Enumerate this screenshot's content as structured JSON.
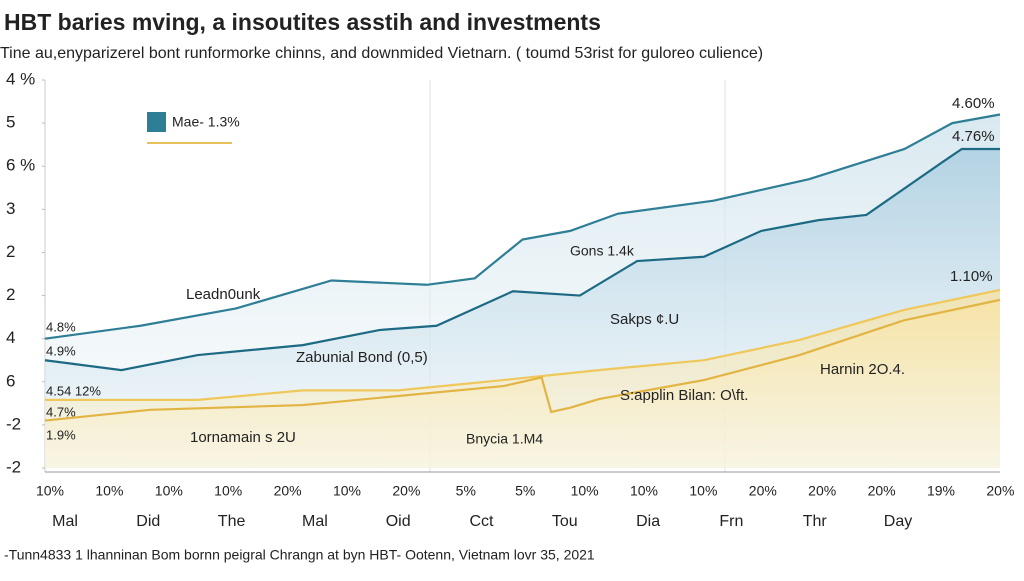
{
  "chart_data": {
    "type": "line",
    "title": "HBT baries mving, a insoutites asstih and investments",
    "subtitle": "Tine au,enyparizerel bont runformorke chinns, and downmided Vietnarn. ( toumd 53rist for guloreo culience)",
    "ylim": [
      0,
      9
    ],
    "yticks": [
      {
        "value": 9,
        "label": "4 %"
      },
      {
        "value": 8,
        "label": "5"
      },
      {
        "value": 7,
        "label": "6 %"
      },
      {
        "value": 6,
        "label": "3"
      },
      {
        "value": 5,
        "label": "2"
      },
      {
        "value": 4,
        "label": "2"
      },
      {
        "value": 3,
        "label": "4"
      },
      {
        "value": 2,
        "label": "6"
      },
      {
        "value": 1,
        "label": "-2"
      },
      {
        "value": 0,
        "label": "-2"
      }
    ],
    "xlim": [
      0,
      100
    ],
    "categories": [
      "Mal",
      "Did",
      "The",
      "Mal",
      "Oid",
      "Cct",
      "Tou",
      "Dia",
      "Frn",
      "Thr",
      "Day"
    ],
    "rate_labels": [
      "10%",
      "10%",
      "10%",
      "10%",
      "20%",
      "10%",
      "20%",
      "5%",
      "5%",
      "10%",
      "10%",
      "10%",
      "20%",
      "20%",
      "20%",
      "19%",
      "20%"
    ],
    "series": [
      {
        "name": "Mae- 1.3%",
        "color": "#2e7f96",
        "x": [
          0,
          10,
          20,
          30,
          40,
          45,
          50,
          55,
          60,
          70,
          80,
          90,
          95,
          100
        ],
        "values": [
          3.0,
          3.3,
          3.7,
          4.35,
          4.25,
          4.4,
          5.3,
          5.5,
          5.9,
          6.2,
          6.7,
          7.4,
          8.0,
          8.2
        ]
      },
      {
        "color": "#1d6a84",
        "x": [
          0,
          8,
          16,
          27,
          35,
          41,
          49,
          56,
          62,
          69,
          75,
          81,
          86,
          94,
          96,
          100
        ],
        "values": [
          2.5,
          2.27,
          2.62,
          2.85,
          3.2,
          3.3,
          4.1,
          4.0,
          4.8,
          4.9,
          5.5,
          5.75,
          5.87,
          7.1,
          7.4,
          7.4
        ]
      },
      {
        "color": "#f0c75a",
        "x": [
          0,
          16,
          27,
          37,
          48,
          58,
          69,
          79,
          90,
          100
        ],
        "values": [
          1.58,
          1.58,
          1.8,
          1.8,
          2.04,
          2.27,
          2.5,
          2.97,
          3.67,
          4.13
        ]
      },
      {
        "color": "#e2b443",
        "x": [
          0,
          11,
          27,
          48,
          52,
          53,
          55,
          58,
          69,
          79,
          90,
          100
        ],
        "values": [
          1.1,
          1.35,
          1.46,
          1.9,
          2.1,
          1.3,
          1.4,
          1.6,
          2.04,
          2.62,
          3.43,
          3.9
        ]
      }
    ],
    "annotations": [
      "4.60%",
      "4.76%",
      "1.10%",
      "Gons 1.4k",
      "Leadn0unk",
      "Sakps ¢.U",
      "Zabunial Bond (0,5)",
      "Harnin 2O.4.",
      "S:applin Bilan: O\\ft.",
      "1ornamain s 2U",
      "Bnycia 1.M4",
      "4.8%",
      "4.9%",
      "4.54 12%",
      "4.7%",
      "1.9%"
    ],
    "footer": "-Tunn4833 1 lhanninan Bom bornn peigral Chrangn at byn HBT- Ootenn, Vietnam lovr 35, 2021"
  }
}
